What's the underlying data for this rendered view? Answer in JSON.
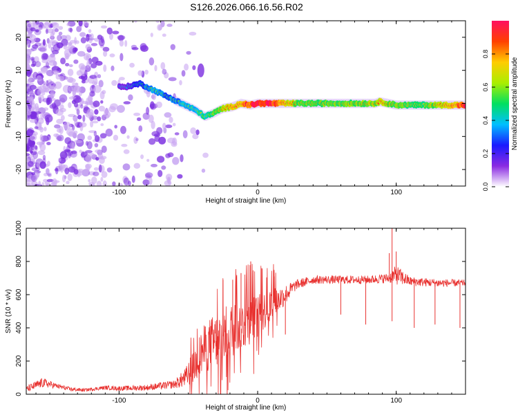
{
  "title": "S126.2026.066.16.56.R02",
  "colors": {
    "snr_line": "#e8312f",
    "axis": "#000000",
    "scatter_purple": "#7a2de0",
    "scatter_light": "#c9a6f2"
  },
  "chart_data": [
    {
      "type": "heatmap",
      "xlabel": "Height of straight line (km)",
      "ylabel": "Frequency (Hz)",
      "xlim": [
        -167,
        150
      ],
      "ylim": [
        -25,
        25
      ],
      "xticks": [
        -100,
        0,
        100
      ],
      "xtick_labels": [
        "-100",
        "0",
        "100"
      ],
      "yticks": [
        20,
        10,
        0,
        -10,
        -20
      ],
      "ytick_labels": [
        "20",
        "10",
        "0",
        "-10",
        "-20"
      ],
      "ridge": {
        "x": [
          -95,
          -85,
          -75,
          -65,
          -55,
          -45,
          -38,
          -32,
          -25,
          -18,
          -12,
          -5,
          0,
          10,
          30,
          60,
          85,
          88,
          100,
          120,
          150
        ],
        "freq": [
          5,
          6,
          4,
          2,
          0,
          -2,
          -4,
          -3,
          -1.5,
          -1,
          0,
          -0.5,
          0,
          0,
          0,
          0,
          0,
          0.5,
          -0.5,
          -0.5,
          -0.5
        ],
        "amplitude": [
          0.15,
          0.25,
          0.35,
          0.3,
          0.35,
          0.4,
          0.45,
          0.5,
          0.6,
          0.7,
          0.8,
          0.9,
          1.0,
          0.95,
          0.55,
          0.55,
          0.6,
          0.7,
          0.55,
          0.5,
          0.9
        ]
      },
      "colorbar": {
        "label": "Normalized spectral amplitude",
        "range": [
          0,
          1
        ],
        "ticks": [
          0.0,
          0.2,
          0.4,
          0.6,
          0.8
        ],
        "tick_labels": [
          "0.0",
          "0.2",
          "0.4",
          "0.6",
          "0.8"
        ],
        "colormap": [
          "#ffffff",
          "#8a2be2",
          "#1a1aff",
          "#00bfff",
          "#00e060",
          "#aaee00",
          "#ffcc00",
          "#ff4000",
          "#ff1060"
        ]
      }
    },
    {
      "type": "line",
      "title": "",
      "xlabel": "Height of straight line (km)",
      "ylabel": "SNR (10 * v/v)",
      "xlim": [
        -167,
        150
      ],
      "ylim": [
        0,
        1000
      ],
      "xticks": [
        -100,
        0,
        100
      ],
      "xtick_labels": [
        "-100",
        "0",
        "100"
      ],
      "yticks": [
        0,
        200,
        400,
        600,
        800,
        1000
      ],
      "ytick_labels": [
        "0",
        "200",
        "400",
        "600",
        "800",
        "1000"
      ],
      "envelope": {
        "x": [
          -167,
          -155,
          -145,
          -135,
          -125,
          -110,
          -100,
          -80,
          -60,
          -52,
          -45,
          -40,
          -35,
          -28,
          -20,
          -10,
          0,
          10,
          20,
          28,
          40,
          60,
          80,
          95,
          100,
          110,
          130,
          150
        ],
        "base": [
          30,
          70,
          50,
          30,
          25,
          40,
          35,
          40,
          60,
          100,
          180,
          260,
          300,
          330,
          380,
          420,
          470,
          540,
          600,
          660,
          690,
          690,
          690,
          700,
          720,
          680,
          670,
          670
        ],
        "noise": [
          20,
          30,
          15,
          12,
          10,
          12,
          14,
          18,
          25,
          60,
          110,
          140,
          160,
          170,
          170,
          150,
          130,
          100,
          60,
          30,
          25,
          25,
          25,
          30,
          60,
          28,
          25,
          20
        ]
      },
      "spikes_up": [
        [
          -25,
          690
        ],
        [
          -18,
          690
        ],
        [
          -12,
          730
        ],
        [
          -5,
          800
        ],
        [
          3,
          760
        ],
        [
          12,
          710
        ],
        [
          97,
          1000
        ],
        [
          95,
          850
        ],
        [
          100,
          860
        ]
      ],
      "spikes_down": [
        [
          20,
          360
        ],
        [
          60,
          480
        ],
        [
          78,
          420
        ],
        [
          97,
          440
        ],
        [
          113,
          400
        ],
        [
          128,
          420
        ],
        [
          146,
          400
        ],
        [
          -30,
          210
        ],
        [
          -22,
          0
        ]
      ]
    }
  ]
}
